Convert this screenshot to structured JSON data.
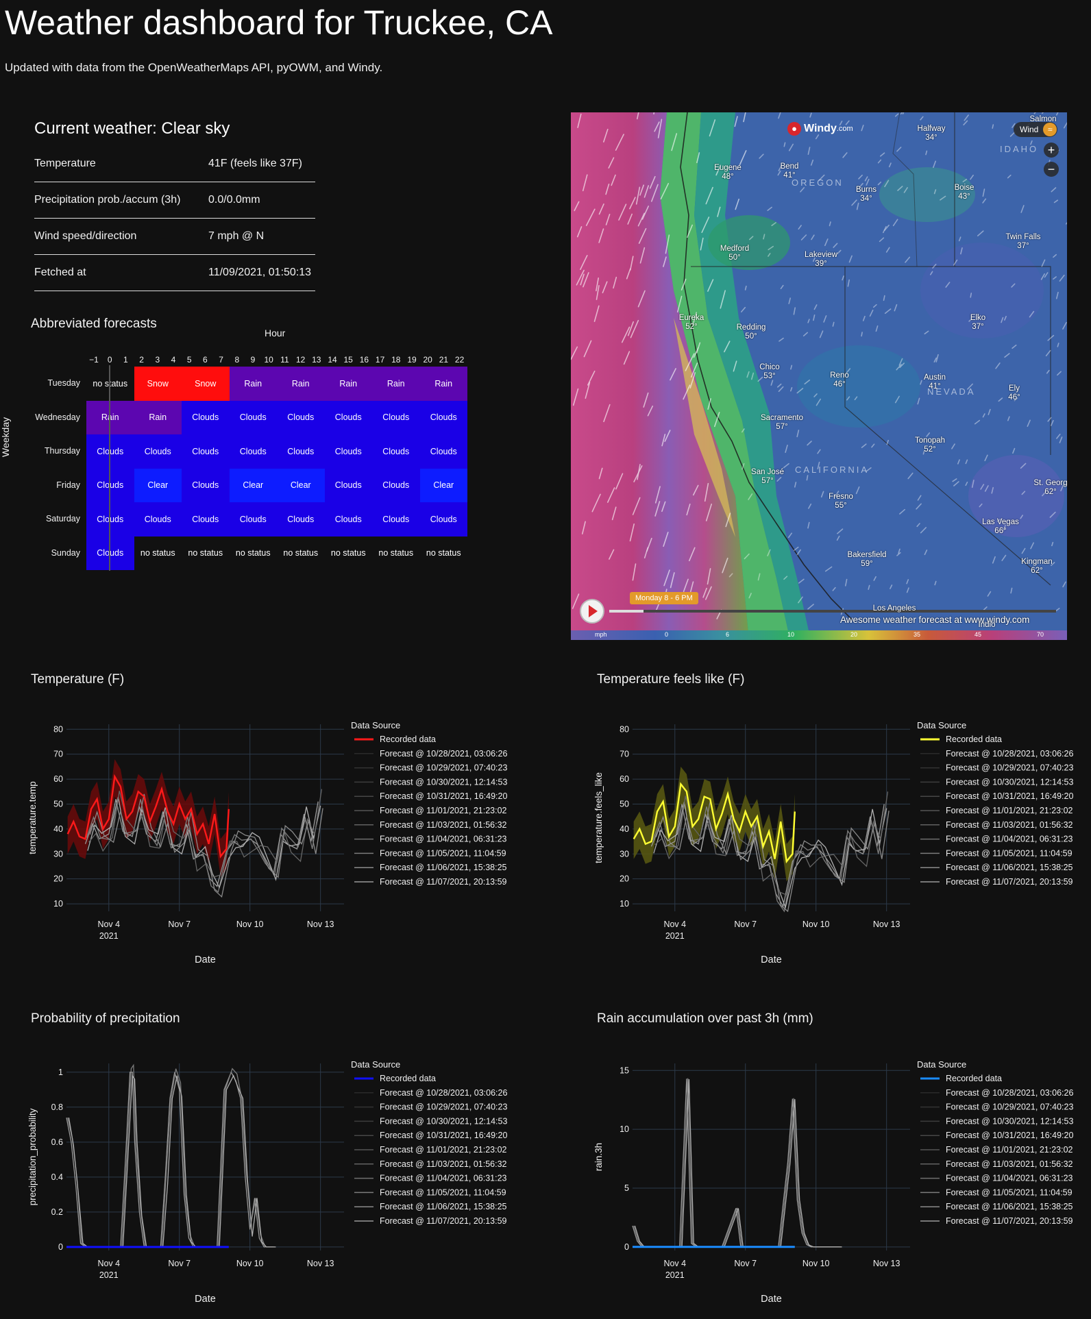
{
  "page": {
    "title": "Weather dashboard for Truckee, CA",
    "subtitle": "Updated with data from the OpenWeatherMaps API, pyOWM, and Windy."
  },
  "current": {
    "heading": "Current weather: Clear sky",
    "rows": [
      {
        "key": "Temperature",
        "value": "41F (feels like 37F)"
      },
      {
        "key": "Precipitation prob./accum (3h)",
        "value": "0.0/0.0mm"
      },
      {
        "key": "Wind speed/direction",
        "value": "7 mph @ N"
      },
      {
        "key": "Fetched at",
        "value": "11/09/2021, 01:50:13"
      }
    ]
  },
  "forecast_grid": {
    "heading": "Abbreviated forecasts",
    "x_title": "Hour",
    "y_title": "Weekday",
    "hour_ticks": [
      "−1",
      "0",
      "1",
      "2",
      "3",
      "4",
      "5",
      "6",
      "7",
      "8",
      "9",
      "10",
      "11",
      "12",
      "13",
      "14",
      "15",
      "16",
      "17",
      "18",
      "19",
      "20",
      "21",
      "22"
    ],
    "days": [
      "Tuesday",
      "Wednesday",
      "Thursday",
      "Friday",
      "Saturday",
      "Sunday"
    ],
    "cells": [
      [
        "no status",
        "Snow",
        "Snow",
        "Rain",
        "Rain",
        "Rain",
        "Rain",
        "Rain"
      ],
      [
        "Rain",
        "Rain",
        "Clouds",
        "Clouds",
        "Clouds",
        "Clouds",
        "Clouds",
        "Clouds"
      ],
      [
        "Clouds",
        "Clouds",
        "Clouds",
        "Clouds",
        "Clouds",
        "Clouds",
        "Clouds",
        "Clouds"
      ],
      [
        "Clouds",
        "Clear",
        "Clouds",
        "Clear",
        "Clear",
        "Clouds",
        "Clouds",
        "Clear"
      ],
      [
        "Clouds",
        "Clouds",
        "Clouds",
        "Clouds",
        "Clouds",
        "Clouds",
        "Clouds",
        "Clouds"
      ],
      [
        "Clouds",
        "no status",
        "no status",
        "no status",
        "no status",
        "no status",
        "no status",
        "no status"
      ]
    ],
    "colors": {
      "Snow": "#ff0d0d",
      "Rain": "#5c06b0",
      "Clouds": "#1a00e6",
      "Clear": "#0d1cff",
      "no status": "#111111"
    }
  },
  "map": {
    "brand": "Windy",
    "brand_suffix": ".com",
    "layer_button": "Wind",
    "time_label": "Monday 8 - 6 PM",
    "promo": "Awesome weather forecast at www.windy.com",
    "scale_unit": "mph",
    "scale_ticks": [
      "0",
      "6",
      "10",
      "20",
      "35",
      "45",
      "70"
    ],
    "regions": [
      "OREGON",
      "IDAHO",
      "NEVADA",
      "CALIFORNIA"
    ],
    "cities": [
      {
        "name": "Salmon",
        "temp": ""
      },
      {
        "name": "Halfway",
        "temp": "34°"
      },
      {
        "name": "Eugene",
        "temp": "48°"
      },
      {
        "name": "Bend",
        "temp": "41°"
      },
      {
        "name": "Burns",
        "temp": "34°"
      },
      {
        "name": "Boise",
        "temp": "43°"
      },
      {
        "name": "Twin Falls",
        "temp": "37°"
      },
      {
        "name": "Medford",
        "temp": "50°"
      },
      {
        "name": "Lakeview",
        "temp": "39°"
      },
      {
        "name": "Eureka",
        "temp": "52°"
      },
      {
        "name": "Redding",
        "temp": "50°"
      },
      {
        "name": "Elko",
        "temp": "37°"
      },
      {
        "name": "Chico",
        "temp": "53°"
      },
      {
        "name": "Reno",
        "temp": "46°"
      },
      {
        "name": "Austin",
        "temp": "41°"
      },
      {
        "name": "Ely",
        "temp": "46°"
      },
      {
        "name": "Sacramento",
        "temp": "57°"
      },
      {
        "name": "Tonopah",
        "temp": "52°"
      },
      {
        "name": "San José",
        "temp": "57°"
      },
      {
        "name": "St. Georg",
        "temp": "62°"
      },
      {
        "name": "Fresno",
        "temp": "55°"
      },
      {
        "name": "Las Vegas",
        "temp": "66°"
      },
      {
        "name": "Bakersfield",
        "temp": "59°"
      },
      {
        "name": "Kingman",
        "temp": "62°"
      },
      {
        "name": "Los Angeles",
        "temp": ""
      },
      {
        "name": "Indio",
        "temp": ""
      }
    ]
  },
  "legend": {
    "title": "Data Source",
    "entries": [
      "Recorded data",
      "Forecast @ 10/28/2021, 03:06:26",
      "Forecast @ 10/29/2021, 07:40:23",
      "Forecast @ 10/30/2021, 12:14:53",
      "Forecast @ 10/31/2021, 16:49:20",
      "Forecast @ 11/01/2021, 21:23:02",
      "Forecast @ 11/03/2021, 01:56:32",
      "Forecast @ 11/04/2021, 06:31:23",
      "Forecast @ 11/05/2021, 11:04:59",
      "Forecast @ 11/06/2021, 15:38:25",
      "Forecast @ 11/07/2021, 20:13:59"
    ]
  },
  "chart_data": [
    {
      "type": "line",
      "title": "Temperature (F)",
      "xlabel": "Date",
      "ylabel": "temperature.temp",
      "x_ticks": [
        "Nov 4",
        "Nov 7",
        "Nov 10",
        "Nov 13"
      ],
      "x_tick_sub": "2021",
      "xlim_days": [
        2.2,
        14.0
      ],
      "ylim": [
        7,
        82
      ],
      "y_ticks": [
        10,
        20,
        30,
        40,
        50,
        60,
        70,
        80
      ],
      "recorded_color": "#ff1a1a",
      "band_color": "#6b0a0a",
      "recorded": {
        "x": [
          2.25,
          2.5,
          2.75,
          3.0,
          3.25,
          3.5,
          3.75,
          4.0,
          4.25,
          4.5,
          4.75,
          5.0,
          5.25,
          5.5,
          5.75,
          6.0,
          6.25,
          6.5,
          6.75,
          7.0,
          7.25,
          7.5,
          7.75,
          8.0,
          8.25,
          8.5,
          8.75,
          9.0,
          9.1
        ],
        "y": [
          38,
          43,
          37,
          36,
          48,
          52,
          40,
          44,
          61,
          57,
          44,
          47,
          55,
          53,
          43,
          49,
          56,
          47,
          42,
          50,
          44,
          48,
          38,
          42,
          34,
          46,
          29,
          32,
          48
        ]
      },
      "forecast": {
        "x": [
          3.0,
          3.3,
          3.6,
          4.0,
          4.3,
          4.6,
          5.0,
          5.3,
          5.6,
          6.0,
          6.3,
          6.6,
          7.0,
          7.3,
          7.6,
          8.0,
          8.3,
          8.6,
          9.0,
          9.3,
          9.6,
          10.0,
          10.3,
          10.6,
          11.0,
          11.3,
          11.6,
          12.0,
          12.3,
          12.6,
          12.9
        ],
        "y": [
          34,
          42,
          36,
          38,
          52,
          39,
          37,
          49,
          38,
          35,
          47,
          34,
          33,
          42,
          28,
          30,
          20,
          17,
          31,
          35,
          33,
          36,
          34,
          29,
          22,
          38,
          34,
          32,
          46,
          35,
          51
        ]
      }
    },
    {
      "type": "line",
      "title": "Temperature feels like (F)",
      "xlabel": "Date",
      "ylabel": "temperature.feels_like",
      "x_ticks": [
        "Nov 4",
        "Nov 7",
        "Nov 10",
        "Nov 13"
      ],
      "x_tick_sub": "2021",
      "xlim_days": [
        2.2,
        14.0
      ],
      "ylim": [
        7,
        82
      ],
      "y_ticks": [
        10,
        20,
        30,
        40,
        50,
        60,
        70,
        80
      ],
      "recorded_color": "#ffff33",
      "band_color": "#5a5a12",
      "recorded": {
        "x": [
          2.25,
          2.5,
          2.75,
          3.0,
          3.25,
          3.5,
          3.75,
          4.0,
          4.25,
          4.5,
          4.75,
          5.0,
          5.25,
          5.5,
          5.75,
          6.0,
          6.25,
          6.5,
          6.75,
          7.0,
          7.25,
          7.5,
          7.75,
          8.0,
          8.25,
          8.5,
          8.75,
          9.0,
          9.1
        ],
        "y": [
          36,
          40,
          34,
          35,
          47,
          51,
          37,
          41,
          58,
          55,
          41,
          44,
          53,
          52,
          40,
          46,
          54,
          44,
          39,
          47,
          41,
          45,
          33,
          39,
          28,
          43,
          27,
          30,
          47
        ]
      },
      "forecast": {
        "x": [
          3.0,
          3.3,
          3.6,
          4.0,
          4.3,
          4.6,
          5.0,
          5.3,
          5.6,
          6.0,
          6.3,
          6.6,
          7.0,
          7.3,
          7.6,
          8.0,
          8.3,
          8.6,
          9.0,
          9.3,
          9.6,
          10.0,
          10.3,
          10.6,
          11.0,
          11.3,
          11.6,
          12.0,
          12.3,
          12.6,
          12.9
        ],
        "y": [
          33,
          40,
          33,
          35,
          50,
          36,
          34,
          46,
          35,
          32,
          44,
          31,
          30,
          39,
          24,
          26,
          14,
          9,
          27,
          31,
          29,
          33,
          30,
          26,
          20,
          37,
          32,
          30,
          45,
          33,
          50
        ]
      }
    },
    {
      "type": "line",
      "title": "Probability of precipitation",
      "xlabel": "Date",
      "ylabel": "precipitation_probability",
      "x_ticks": [
        "Nov 4",
        "Nov 7",
        "Nov 10",
        "Nov 13"
      ],
      "x_tick_sub": "2021",
      "xlim_days": [
        2.2,
        14.0
      ],
      "ylim": [
        -0.02,
        1.05
      ],
      "y_ticks": [
        0,
        0.2,
        0.4,
        0.6,
        0.8,
        1
      ],
      "recorded_color": "#1010ff",
      "recorded": {
        "x": [
          2.2,
          9.1
        ],
        "y": [
          0,
          0
        ]
      },
      "forecast": {
        "x": [
          2.2,
          2.4,
          2.6,
          2.8,
          3.0,
          4.5,
          4.7,
          4.9,
          5.0,
          5.1,
          5.3,
          5.5,
          5.7,
          6.2,
          6.4,
          6.6,
          6.8,
          7.0,
          7.2,
          7.4,
          7.6,
          7.8,
          8.2,
          8.6,
          8.9,
          9.2,
          9.4,
          9.6,
          9.8,
          10.0,
          10.2,
          10.4,
          10.6,
          10.8,
          11.0
        ],
        "y": [
          0.74,
          0.6,
          0.35,
          0.02,
          0,
          0,
          0.48,
          1.0,
          1.0,
          0.6,
          0.2,
          0,
          0,
          0,
          0.4,
          0.85,
          1.0,
          0.9,
          0.3,
          0.05,
          0,
          0,
          0,
          0,
          0.9,
          1.0,
          0.95,
          0.85,
          0.4,
          0.1,
          0.28,
          0.05,
          0,
          0,
          0
        ]
      }
    },
    {
      "type": "line",
      "title": "Rain accumulation over past 3h (mm)",
      "xlabel": "Date",
      "ylabel": "rain.3h",
      "x_ticks": [
        "Nov 4",
        "Nov 7",
        "Nov 10",
        "Nov 13"
      ],
      "x_tick_sub": "2021",
      "xlim_days": [
        2.2,
        14.0
      ],
      "ylim": [
        -0.3,
        15.6
      ],
      "y_ticks": [
        0,
        5,
        10,
        15
      ],
      "recorded_color": "#1a8cff",
      "recorded": {
        "x": [
          2.2,
          9.1
        ],
        "y": [
          0,
          0
        ]
      },
      "forecast": {
        "x": [
          2.2,
          2.4,
          2.6,
          3.0,
          4.2,
          4.5,
          4.7,
          4.9,
          5.2,
          6.0,
          6.6,
          6.8,
          7.0,
          7.4,
          8.0,
          8.4,
          8.8,
          9.0,
          9.2,
          9.4,
          9.6,
          9.8,
          10.0,
          10.4,
          11.0
        ],
        "y": [
          1.8,
          0.5,
          0,
          0,
          0,
          14.3,
          0.3,
          0,
          0,
          0,
          3.3,
          0,
          0,
          0,
          0,
          0,
          7.2,
          12.6,
          4.0,
          1.2,
          0.2,
          0,
          0,
          0,
          0
        ]
      }
    }
  ]
}
